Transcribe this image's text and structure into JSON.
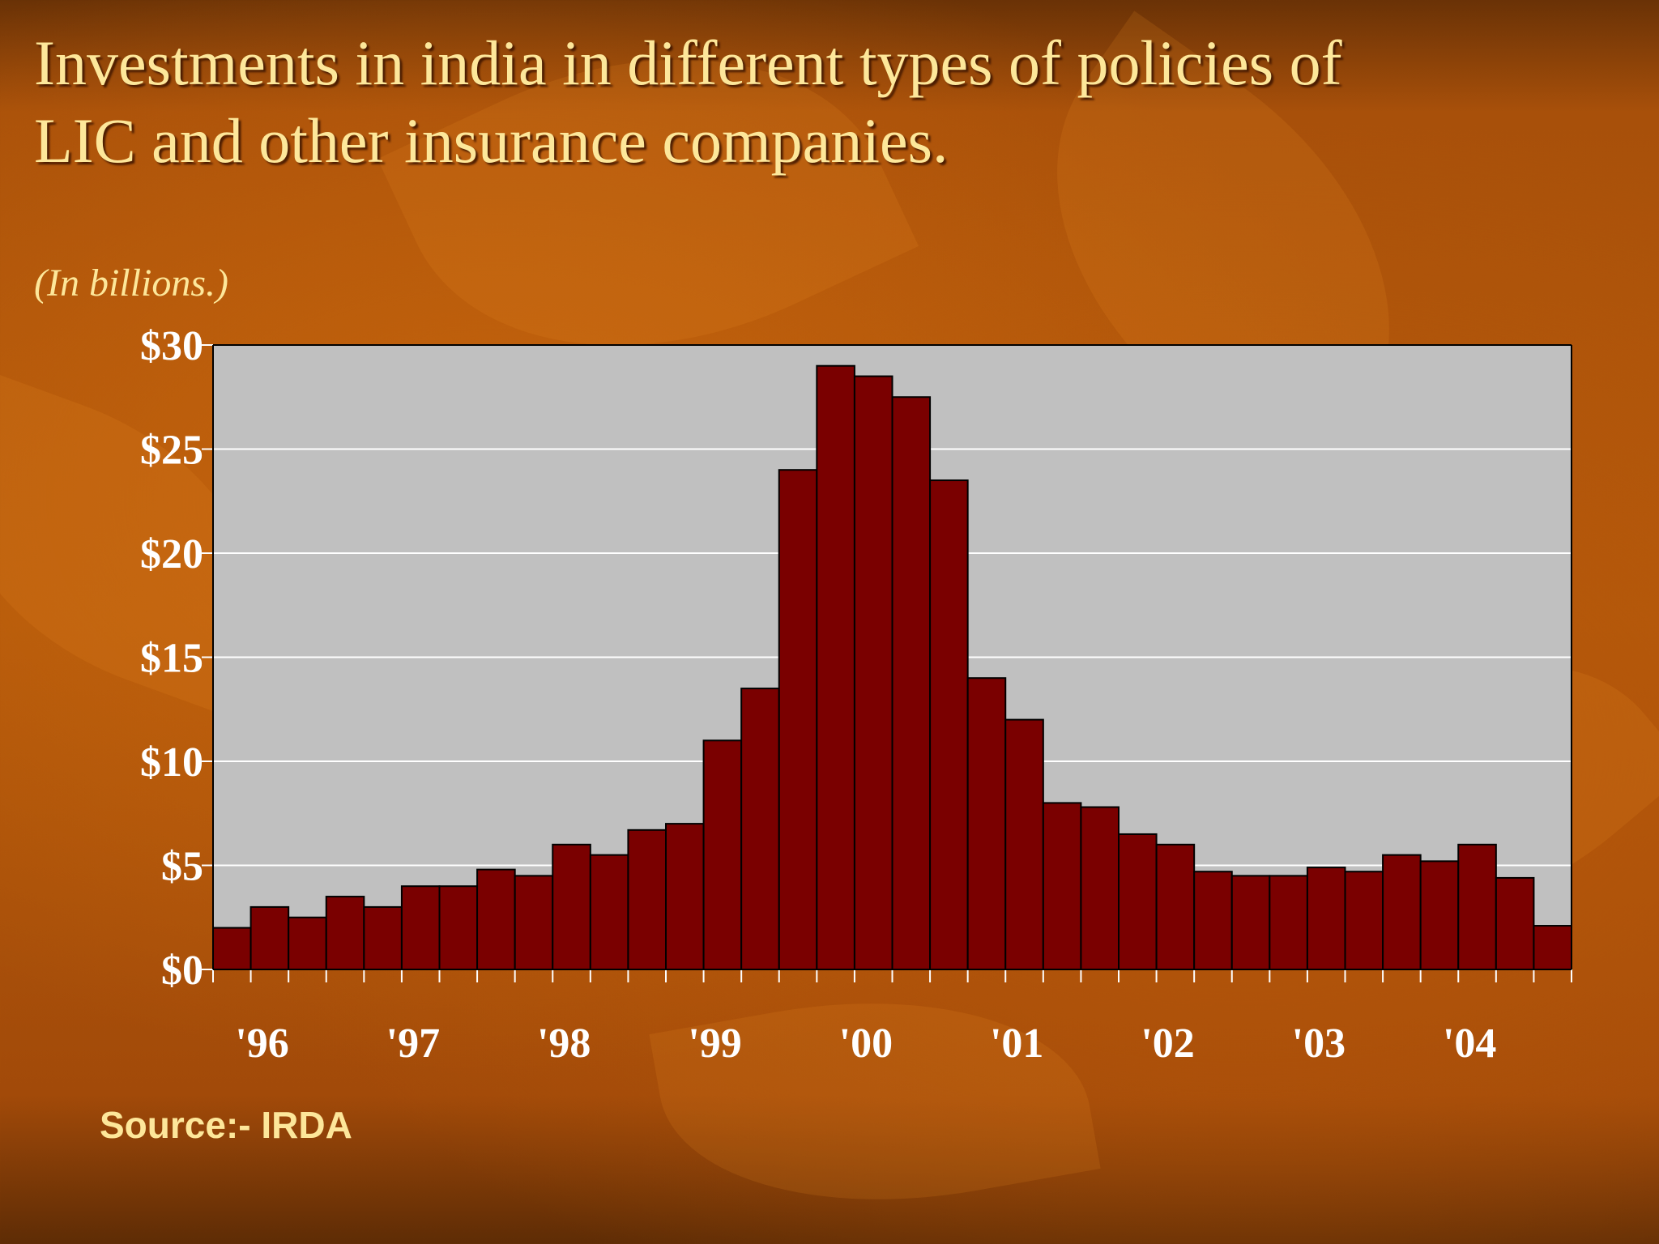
{
  "slide": {
    "title_lines": [
      "Investments in india in different types of policies of",
      "LIC and other insurance companies."
    ],
    "units_note": "(In billions.)",
    "source": "Source:- IRDA"
  },
  "colors": {
    "bar_fill": "#7a0000",
    "plot_background": "#c0c0c0",
    "title_text": "#fde79a",
    "axis_text": "#ffffff"
  },
  "chart_data": {
    "type": "bar",
    "title": "",
    "xlabel": "",
    "ylabel": "",
    "ylim": [
      0,
      30
    ],
    "yticks": [
      0,
      5,
      10,
      15,
      20,
      25,
      30
    ],
    "ytick_labels": [
      "$0",
      "$5",
      "$10",
      "$15",
      "$20",
      "$25",
      "$30"
    ],
    "year_labels": [
      "'96",
      "'97",
      "'98",
      "'99",
      "'00",
      "'01",
      "'02",
      "'03",
      "'04"
    ],
    "periods_per_year": 4,
    "grid": true,
    "legend": "none",
    "values": [
      2,
      3,
      2.5,
      3.5,
      3,
      4,
      4,
      4.8,
      4.5,
      6,
      5.5,
      6.7,
      7,
      11,
      13.5,
      24,
      29,
      28.5,
      27.5,
      23.5,
      14,
      12,
      8,
      7.8,
      6.5,
      6,
      4.7,
      4.5,
      4.5,
      4.9,
      4.7,
      5.5,
      5.2,
      6,
      4.4,
      2.1
    ]
  }
}
